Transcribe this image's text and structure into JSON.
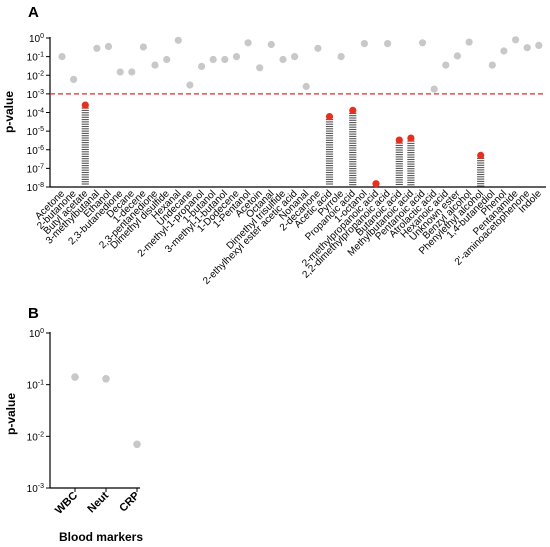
{
  "chart_data": [
    {
      "panel": "A",
      "type": "scatter",
      "ylabel": "p-value",
      "yscale": "log",
      "ylim": [
        1e-08,
        1
      ],
      "yticks": [
        1,
        0.1,
        0.01,
        0.001,
        0.0001,
        1e-05,
        1e-06,
        1e-07,
        1e-08
      ],
      "ytick_labels": [
        {
          "base": "10",
          "exp": "0"
        },
        {
          "base": "10",
          "exp": "-1"
        },
        {
          "base": "10",
          "exp": "-2"
        },
        {
          "base": "10",
          "exp": "-3"
        },
        {
          "base": "10",
          "exp": "-4"
        },
        {
          "base": "10",
          "exp": "-5"
        },
        {
          "base": "10",
          "exp": "-6"
        },
        {
          "base": "10",
          "exp": "-7"
        },
        {
          "base": "10",
          "exp": "-8"
        }
      ],
      "threshold": 0.001,
      "threshold_color": "#e0282a",
      "colors": {
        "nonsignificant": "#c8c8c8",
        "significant": "#e53020",
        "bar": "#555555"
      },
      "categories": [
        "Acetone",
        "2-butanone",
        "Butyl acetate",
        "3-methylbutanal",
        "Ethanol",
        "2,3-butanedione",
        "Decane",
        "1-decene",
        "2,3-pentanedione",
        "Dimethyl disulfide",
        "Hexanal",
        "Undecane",
        "2-methyl-1-propanol",
        "1-butanol",
        "3-methyl-1-butanol",
        "1-Dodecene",
        "1-Pentanol",
        "Acetoin",
        "Octanal",
        "Dimethyl trisulfide",
        "2-ethylhexyl ester acetic acid",
        "Nonanal",
        "2-decanone",
        "Acetic acid",
        "Pyrrole",
        "Propanoic acid",
        "1-octanol",
        "2-methylpropanoic acid",
        "2,2-dimethylpropanoic acid",
        "Butanoic acid",
        "Methylbutanoic acid",
        "Pentanoic acid",
        "Atrolactic acid",
        "Hexanoic acid",
        "Unknown ester",
        "Benzyl alcohol",
        "Phenylethyl alcohol",
        "1,4-butanediol",
        "Phenol",
        "Pentanamide",
        "2'-aminoacetophenone",
        "Indole"
      ],
      "values": [
        0.1,
        0.006,
        0.00025,
        0.28,
        0.35,
        0.015,
        0.015,
        0.33,
        0.035,
        0.07,
        0.75,
        0.003,
        0.03,
        0.07,
        0.07,
        0.1,
        0.55,
        0.025,
        0.45,
        0.07,
        0.1,
        0.0025,
        0.28,
        6e-05,
        0.1,
        0.00013,
        0.5,
        1.5e-08,
        0.5,
        3.3e-06,
        4.2e-06,
        0.55,
        0.0018,
        0.035,
        0.11,
        0.6,
        5e-07,
        0.035,
        0.2,
        0.8,
        0.3,
        0.4
      ],
      "significant": [
        false,
        false,
        true,
        false,
        false,
        false,
        false,
        false,
        false,
        false,
        false,
        false,
        false,
        false,
        false,
        false,
        false,
        false,
        false,
        false,
        false,
        false,
        false,
        true,
        false,
        true,
        false,
        true,
        false,
        true,
        true,
        false,
        false,
        false,
        false,
        false,
        true,
        false,
        false,
        false,
        false,
        false
      ]
    },
    {
      "panel": "B",
      "type": "scatter",
      "ylabel": "p-value",
      "xlabel": "Blood markers",
      "yscale": "log",
      "ylim": [
        0.001,
        1
      ],
      "yticks": [
        1,
        0.1,
        0.01,
        0.001
      ],
      "ytick_labels": [
        {
          "base": "10",
          "exp": "0"
        },
        {
          "base": "10",
          "exp": "-1"
        },
        {
          "base": "10",
          "exp": "-2"
        },
        {
          "base": "10",
          "exp": "-3"
        }
      ],
      "colors": {
        "nonsignificant": "#c8c8c8"
      },
      "categories": [
        "WBC",
        "Neut",
        "CRP"
      ],
      "values": [
        0.14,
        0.13,
        0.007
      ]
    }
  ]
}
